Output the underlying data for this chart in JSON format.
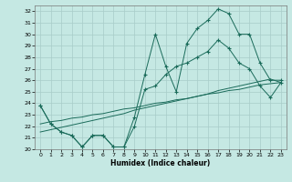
{
  "xlabel": "Humidex (Indice chaleur)",
  "xlim": [
    -0.5,
    23.5
  ],
  "ylim": [
    20,
    32.5
  ],
  "yticks": [
    20,
    21,
    22,
    23,
    24,
    25,
    26,
    27,
    28,
    29,
    30,
    31,
    32
  ],
  "xticks": [
    0,
    1,
    2,
    3,
    4,
    5,
    6,
    7,
    8,
    9,
    10,
    11,
    12,
    13,
    14,
    15,
    16,
    17,
    18,
    19,
    20,
    21,
    22,
    23
  ],
  "bg_color": "#c5e8e3",
  "grid_color": "#a8ccc8",
  "line_color": "#1a6b5a",
  "series_main": [
    23.8,
    22.2,
    21.5,
    21.2,
    20.2,
    21.2,
    21.2,
    20.2,
    20.2,
    22.8,
    26.5,
    30.0,
    27.2,
    25.0,
    29.2,
    30.5,
    31.2,
    32.2,
    31.8,
    30.0,
    30.0,
    27.5,
    26.0,
    26.0
  ],
  "series_low": [
    23.8,
    22.2,
    21.5,
    21.2,
    20.2,
    21.2,
    21.2,
    20.2,
    20.2,
    22.0,
    25.2,
    25.5,
    26.5,
    27.2,
    27.5,
    28.0,
    28.5,
    29.5,
    28.8,
    27.5,
    27.0,
    25.5,
    24.5,
    25.8
  ],
  "series_trendA": [
    21.5,
    21.7,
    21.9,
    22.1,
    22.3,
    22.5,
    22.7,
    22.9,
    23.1,
    23.4,
    23.6,
    23.8,
    24.0,
    24.2,
    24.4,
    24.6,
    24.8,
    25.1,
    25.3,
    25.5,
    25.7,
    25.9,
    26.1,
    25.8
  ],
  "series_trendB": [
    22.2,
    22.4,
    22.5,
    22.7,
    22.8,
    23.0,
    23.1,
    23.3,
    23.5,
    23.6,
    23.8,
    24.0,
    24.1,
    24.3,
    24.4,
    24.6,
    24.8,
    24.9,
    25.1,
    25.2,
    25.4,
    25.6,
    25.7,
    25.8
  ]
}
